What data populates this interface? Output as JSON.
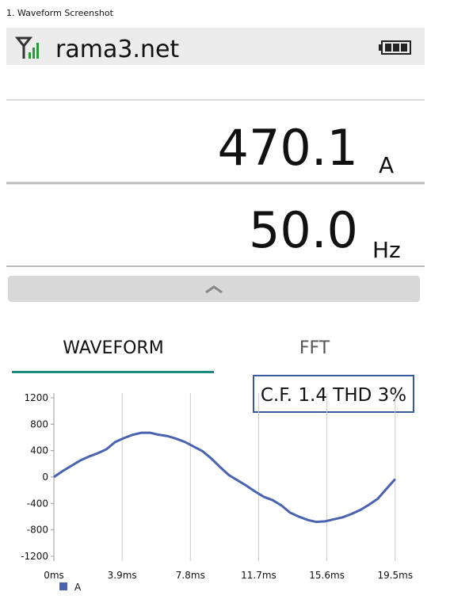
{
  "caption": "1. Waveform Screenshot",
  "header": {
    "title": "rama3.net"
  },
  "readings": [
    {
      "value": "470.1",
      "unit": "A"
    },
    {
      "value": "50.0",
      "unit": "Hz"
    }
  ],
  "tabs": [
    "WAVEFORM",
    "FFT"
  ],
  "annotation": "C.F. 1.4  THD 3%",
  "chart_data": {
    "type": "line",
    "x": [
      0,
      0.5,
      1,
      1.5,
      2,
      2.5,
      3,
      3.5,
      4,
      4.5,
      5,
      5.5,
      6,
      6.5,
      7,
      7.5,
      8,
      8.5,
      9,
      9.5,
      10,
      10.5,
      11,
      11.5,
      12,
      12.5,
      13,
      13.5,
      14,
      14.5,
      15,
      15.5,
      16,
      16.5,
      17,
      17.5,
      18,
      18.5,
      19,
      19.5
    ],
    "series": [
      {
        "name": "A",
        "color": "#4a63b0",
        "values": [
          0,
          90,
          170,
          250,
          310,
          360,
          420,
          530,
          590,
          640,
          670,
          670,
          640,
          620,
          580,
          530,
          460,
          390,
          280,
          150,
          30,
          -50,
          -130,
          -220,
          -300,
          -350,
          -430,
          -540,
          -600,
          -650,
          -680,
          -670,
          -640,
          -610,
          -560,
          -500,
          -420,
          -330,
          -180,
          -30
        ]
      }
    ],
    "xlim": [
      0,
      19.6
    ],
    "xticks": [
      {
        "value": 0,
        "label": "0ms"
      },
      {
        "value": 3.9,
        "label": "3.9ms"
      },
      {
        "value": 7.8,
        "label": "7.8ms"
      },
      {
        "value": 11.7,
        "label": "11.7ms"
      },
      {
        "value": 15.6,
        "label": "15.6ms"
      },
      {
        "value": 19.5,
        "label": "19.5ms"
      }
    ],
    "ylim": [
      -1200,
      1200
    ],
    "yticks": [
      -1200,
      -800,
      -400,
      0,
      400,
      800,
      1200
    ],
    "grid": true
  }
}
